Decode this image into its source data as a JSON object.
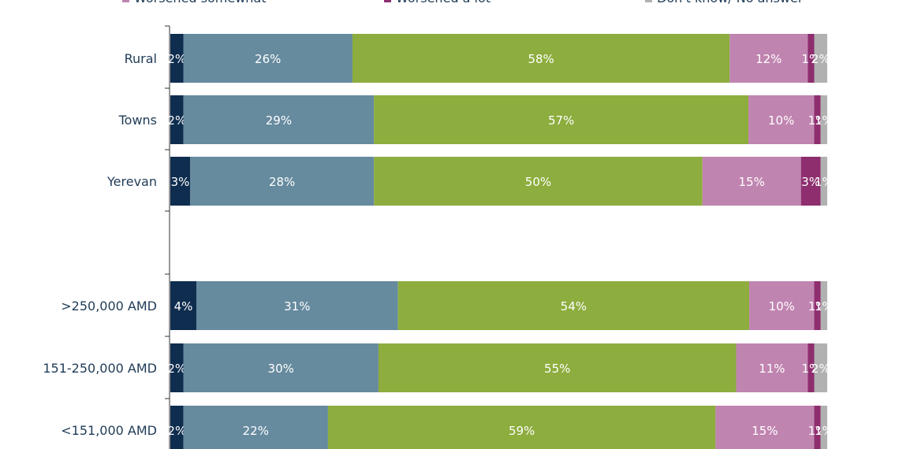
{
  "chart_data": {
    "type": "bar",
    "orientation": "horizontal",
    "stacked": true,
    "categories": [
      "Rural",
      "Towns",
      "Yerevan",
      ">250,000 AMD",
      "151-250,000 AMD",
      "<151,000 AMD"
    ],
    "legend": [
      {
        "name": "Worsened somewhat",
        "color": "#c084b0"
      },
      {
        "name": "Worsened a lot",
        "color": "#8e2e6f"
      },
      {
        "name": "Don't know/ No answer",
        "color": "#b1b1b1"
      }
    ],
    "series": [
      {
        "color": "#0f2d4f",
        "values": [
          2,
          2,
          3,
          4,
          2,
          2
        ]
      },
      {
        "color": "#668a9e",
        "values": [
          26,
          29,
          28,
          31,
          30,
          22
        ]
      },
      {
        "color": "#8dad3e",
        "values": [
          58,
          57,
          50,
          54,
          55,
          59
        ]
      },
      {
        "name": "Worsened somewhat",
        "color": "#c084b0",
        "values": [
          12,
          10,
          15,
          10,
          11,
          15
        ]
      },
      {
        "name": "Worsened a lot",
        "color": "#8e2e6f",
        "values": [
          1,
          1,
          3,
          1,
          1,
          1
        ]
      },
      {
        "name": "Don't know/ No answer",
        "color": "#b1b1b1",
        "values": [
          2,
          1,
          1,
          1,
          2,
          1
        ]
      }
    ],
    "value_suffix": "%",
    "legend_position": "top",
    "grid": false
  }
}
